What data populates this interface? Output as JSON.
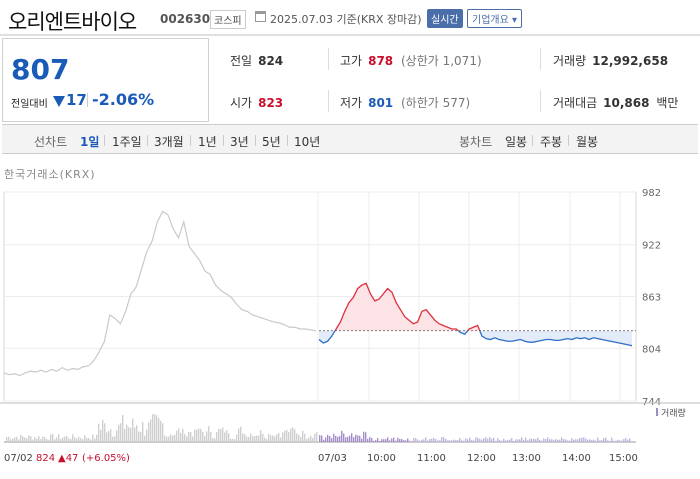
{
  "header": {
    "title": "오리엔트바이오",
    "code": "002630",
    "market": "코스피",
    "date_text": "2025.07.03  기준(KRX 장마감)",
    "realtime_label": "실시간",
    "company_label": "기업개요 ▾"
  },
  "price": {
    "current": "807",
    "compare_label": "전일대비",
    "change": "17",
    "change_rate": "-2.06%"
  },
  "stats": {
    "prev_label": "전일",
    "prev": "824",
    "open_label": "시가",
    "open": "823",
    "high_label": "고가",
    "high": "878",
    "high_limit": "(상한가 1,071)",
    "low_label": "저가",
    "low": "801",
    "low_limit": "(하한가 577)",
    "volume_label": "거래량",
    "volume": "12,992,658",
    "amount_label": "거래대금",
    "amount": "10,868",
    "amount_unit": "백만"
  },
  "tabs": {
    "line_label": "선차트",
    "line": [
      "1일",
      "1주일",
      "3개월",
      "1년",
      "3년",
      "5년",
      "10년"
    ],
    "candle_label": "봉차트",
    "candle": [
      "일봉",
      "주봉",
      "월봉"
    ]
  },
  "source": "한국거래소(KRX)",
  "chart_data": {
    "type": "line",
    "y_ticks": [
      "982",
      "922",
      "863",
      "804",
      "744"
    ],
    "ylim": [
      744,
      982
    ],
    "reference_price": 824,
    "volume_label": "거래량",
    "x_labels": [
      "07/02",
      "07/03",
      "10:00",
      "11:00",
      "12:00",
      "13:00",
      "14:00",
      "15:00"
    ],
    "prev_day_summary": {
      "date": "07/02",
      "close": "824",
      "change": "▲47",
      "rate": "(+6.05%)"
    },
    "prev_day_series": [
      776,
      774,
      775,
      773,
      776,
      778,
      777,
      779,
      777,
      780,
      778,
      782,
      779,
      781,
      780,
      783,
      784,
      790,
      800,
      812,
      842,
      838,
      832,
      846,
      866,
      874,
      894,
      914,
      926,
      948,
      960,
      956,
      940,
      930,
      948,
      920,
      912,
      904,
      892,
      888,
      876,
      870,
      866,
      862,
      854,
      848,
      846,
      842,
      840,
      838,
      836,
      834,
      833,
      831,
      828,
      828,
      826,
      826,
      825,
      824
    ],
    "today_series": [
      814,
      810,
      812,
      818,
      826,
      834,
      846,
      856,
      862,
      872,
      876,
      878,
      866,
      858,
      860,
      866,
      872,
      868,
      856,
      848,
      840,
      836,
      832,
      834,
      846,
      848,
      842,
      836,
      832,
      830,
      828,
      826,
      826,
      822,
      820,
      826,
      828,
      830,
      818,
      815,
      814,
      816,
      814,
      813,
      812,
      812,
      813,
      814,
      812,
      811,
      811,
      812,
      813,
      814,
      814,
      813,
      813,
      814,
      815,
      814,
      816,
      815,
      816,
      814,
      816,
      815,
      814,
      813,
      812,
      811,
      810,
      809,
      808,
      807
    ]
  }
}
